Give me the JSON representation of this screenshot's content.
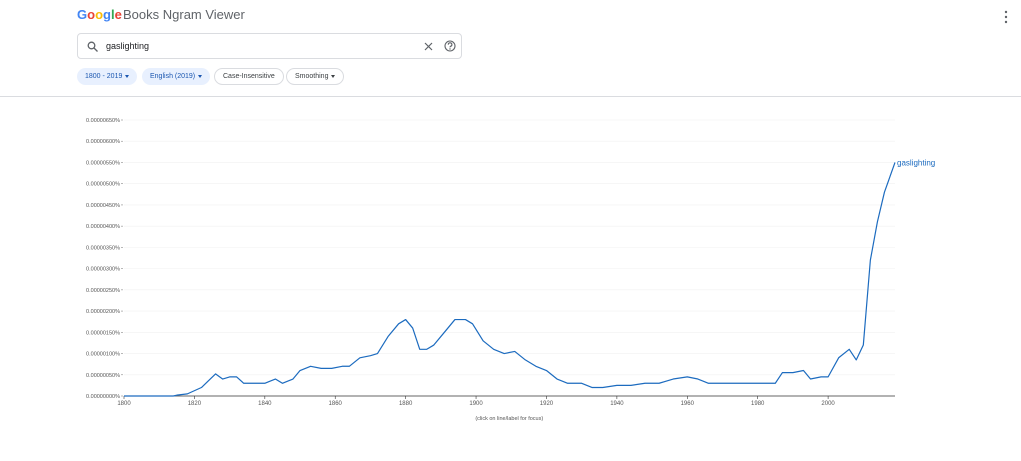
{
  "header": {
    "logo": "Google",
    "product": "Books Ngram Viewer"
  },
  "search": {
    "query": "gaslighting"
  },
  "filters": {
    "years": "1800 - 2019",
    "corpus": "English (2019)",
    "case": "Case-Insensitive",
    "smoothing": "Smoothing"
  },
  "chart_data": {
    "type": "line",
    "note": "(click on line/label for focus)",
    "x": [
      1800,
      1814,
      1815,
      1818,
      1822,
      1826,
      1828,
      1830,
      1832,
      1834,
      1837,
      1840,
      1843,
      1845,
      1848,
      1850,
      1853,
      1856,
      1859,
      1862,
      1864,
      1867,
      1870,
      1872,
      1875,
      1878,
      1880,
      1882,
      1884,
      1886,
      1888,
      1891,
      1894,
      1897,
      1899,
      1902,
      1905,
      1908,
      1911,
      1914,
      1917,
      1920,
      1923,
      1926,
      1930,
      1933,
      1936,
      1940,
      1944,
      1948,
      1952,
      1956,
      1960,
      1963,
      1966,
      1970,
      1974,
      1978,
      1982,
      1985,
      1987,
      1990,
      1993,
      1995,
      1998,
      2000,
      2003,
      2006,
      2008,
      2010,
      2012,
      2014,
      2016,
      2019
    ],
    "series": [
      {
        "name": "gaslighting",
        "color": "#1c6bbf",
        "values": [
          0,
          0,
          2e-08,
          5e-08,
          2e-07,
          5.2e-07,
          4e-07,
          4.5e-07,
          4.5e-07,
          3e-07,
          3e-07,
          3e-07,
          4e-07,
          3e-07,
          4e-07,
          6e-07,
          7e-07,
          6.5e-07,
          6.5e-07,
          7e-07,
          7e-07,
          9e-07,
          9.5e-07,
          1e-06,
          1.4e-06,
          1.7e-06,
          1.8e-06,
          1.6e-06,
          1.1e-06,
          1.1e-06,
          1.2e-06,
          1.5e-06,
          1.8e-06,
          1.8e-06,
          1.7e-06,
          1.3e-06,
          1.1e-06,
          1e-06,
          1.05e-06,
          8.5e-07,
          7e-07,
          6e-07,
          4e-07,
          3e-07,
          3e-07,
          2e-07,
          2e-07,
          2.5e-07,
          2.5e-07,
          3e-07,
          3e-07,
          4e-07,
          4.5e-07,
          4e-07,
          3e-07,
          3e-07,
          3e-07,
          3e-07,
          3e-07,
          3e-07,
          5.5e-07,
          5.5e-07,
          6e-07,
          4e-07,
          4.5e-07,
          4.5e-07,
          9e-07,
          1.1e-06,
          8.5e-07,
          1.2e-06,
          3.2e-06,
          4.1e-06,
          4.8e-06,
          5.5e-06
        ]
      }
    ],
    "xlim": [
      1800,
      2019
    ],
    "xticks": [
      1800,
      1820,
      1840,
      1860,
      1880,
      1900,
      1920,
      1940,
      1960,
      1980,
      2000
    ],
    "ylim": [
      0,
      6.5e-06
    ],
    "yticks": [
      {
        "value": 0,
        "label": "0.00000000%"
      },
      {
        "value": 5e-07,
        "label": "0.00000050%"
      },
      {
        "value": 1e-06,
        "label": "0.00000100%"
      },
      {
        "value": 1.5e-06,
        "label": "0.00000150%"
      },
      {
        "value": 2e-06,
        "label": "0.00000200%"
      },
      {
        "value": 2.5e-06,
        "label": "0.00000250%"
      },
      {
        "value": 3e-06,
        "label": "0.00000300%"
      },
      {
        "value": 3.5e-06,
        "label": "0.00000350%"
      },
      {
        "value": 4e-06,
        "label": "0.00000400%"
      },
      {
        "value": 4.5e-06,
        "label": "0.00000450%"
      },
      {
        "value": 5e-06,
        "label": "0.00000500%"
      },
      {
        "value": 5.5e-06,
        "label": "0.00000550%"
      },
      {
        "value": 6e-06,
        "label": "0.00000600%"
      },
      {
        "value": 6.5e-06,
        "label": "0.00000650%"
      }
    ],
    "grid": true
  }
}
